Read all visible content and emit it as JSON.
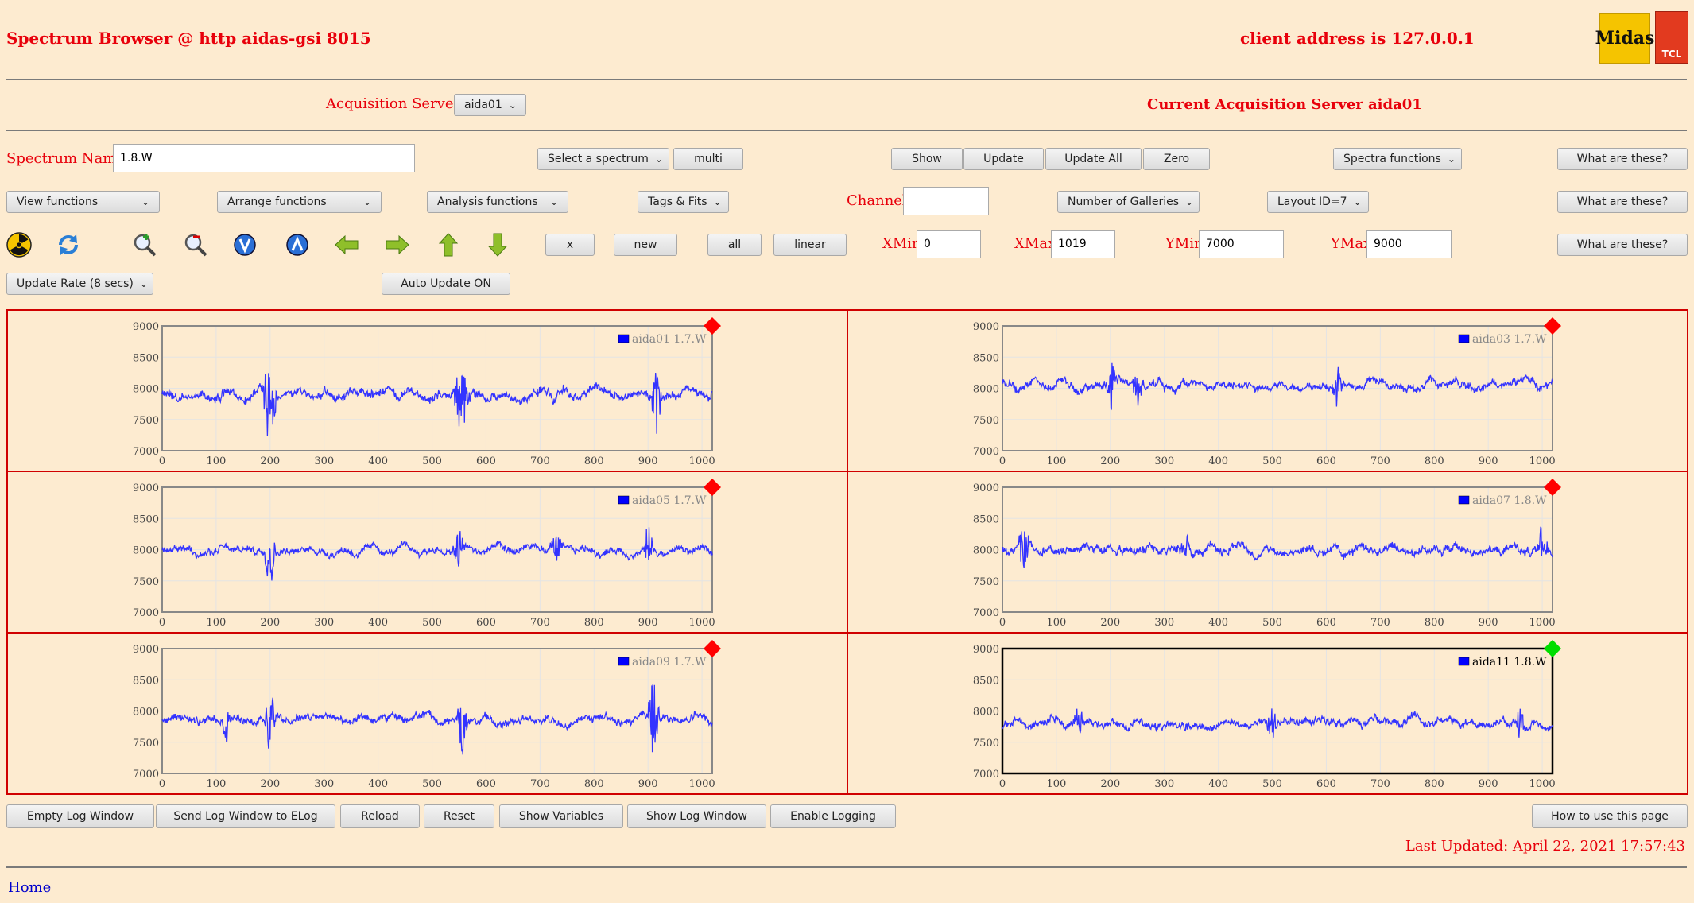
{
  "header": {
    "title": "Spectrum Browser @ http aidas-gsi 8015",
    "client": "client address is 127.0.0.1",
    "logo_midas": "Midas",
    "logo_tcl": "TCL"
  },
  "acquisition": {
    "label": "Acquisition Servers",
    "server_select": "aida01",
    "current": "Current Acquisition Server aida01"
  },
  "row1": {
    "spectrum_name_label": "Spectrum Name:",
    "spectrum_name_value": "1.8.W",
    "select_spectrum": "Select a spectrum",
    "multi": "multi",
    "show": "Show",
    "update": "Update",
    "update_all": "Update All",
    "zero": "Zero",
    "spectra_functions": "Spectra functions",
    "help": "What are these?"
  },
  "row2": {
    "view_functions": "View functions",
    "arrange_functions": "Arrange functions",
    "analysis_functions": "Analysis functions",
    "tags_fits": "Tags & Fits",
    "channel_label": "Channel:",
    "channel_value": "",
    "number_of_galleries": "Number of Galleries",
    "layout_id": "Layout ID=7",
    "help": "What are these?"
  },
  "row3": {
    "icons": [
      "radiation-icon",
      "refresh-icon",
      "zoom-in-icon",
      "zoom-out-icon",
      "scale-down-icon",
      "scale-up-icon",
      "arrow-left-icon",
      "arrow-right-icon",
      "arrow-up-icon",
      "arrow-down-icon"
    ],
    "x": "x",
    "new": "new",
    "all": "all",
    "linear": "linear",
    "xmin_label": "XMin",
    "xmin_value": "0",
    "xmax_label": "XMax",
    "xmax_value": "1019",
    "ymin_label": "YMin",
    "ymin_value": "7000",
    "ymax_label": "YMax",
    "ymax_value": "9000",
    "help": "What are these?"
  },
  "row4": {
    "update_rate": "Update Rate (8 secs)",
    "auto_update": "Auto Update ON"
  },
  "chart_data": [
    {
      "type": "line",
      "series": [
        {
          "name": "aida01 1.7.W"
        }
      ],
      "xlim": [
        0,
        1019
      ],
      "ylim": [
        7000,
        9000
      ],
      "x_ticks": [
        "0",
        "100",
        "200",
        "300",
        "400",
        "500",
        "600",
        "700",
        "800",
        "900",
        "1000"
      ],
      "y_ticks": [
        "7000",
        "7500",
        "8000",
        "8500",
        "9000"
      ],
      "status": "red",
      "baseline": 7900,
      "noise": 120,
      "spikes": [
        [
          195,
          650
        ],
        [
          550,
          600
        ],
        [
          915,
          700
        ],
        [
          560,
          450
        ],
        [
          205,
          420
        ]
      ],
      "selected": false,
      "grid": true
    },
    {
      "type": "line",
      "series": [
        {
          "name": "aida03 1.7.W"
        }
      ],
      "xlim": [
        0,
        1019
      ],
      "ylim": [
        7000,
        9000
      ],
      "x_ticks": [
        "0",
        "100",
        "200",
        "300",
        "400",
        "500",
        "600",
        "700",
        "800",
        "900",
        "1000"
      ],
      "y_ticks": [
        "7000",
        "7500",
        "8000",
        "8500",
        "9000"
      ],
      "status": "red",
      "baseline": 8050,
      "noise": 100,
      "spikes": [
        [
          200,
          600
        ],
        [
          250,
          350
        ],
        [
          620,
          300
        ]
      ],
      "selected": false,
      "grid": true
    },
    {
      "type": "line",
      "series": [
        {
          "name": "aida05 1.7.W"
        }
      ],
      "xlim": [
        0,
        1019
      ],
      "ylim": [
        7000,
        9000
      ],
      "x_ticks": [
        "0",
        "100",
        "200",
        "300",
        "400",
        "500",
        "600",
        "700",
        "800",
        "900",
        "1000"
      ],
      "y_ticks": [
        "7000",
        "7500",
        "8000",
        "8500",
        "9000"
      ],
      "status": "red",
      "baseline": 7980,
      "noise": 90,
      "spikes": [
        [
          200,
          550
        ],
        [
          550,
          480
        ],
        [
          900,
          420
        ],
        [
          730,
          300
        ]
      ],
      "selected": false,
      "grid": true
    },
    {
      "type": "line",
      "series": [
        {
          "name": "aida07 1.8.W"
        }
      ],
      "xlim": [
        0,
        1019
      ],
      "ylim": [
        7000,
        9000
      ],
      "x_ticks": [
        "0",
        "100",
        "200",
        "300",
        "400",
        "500",
        "600",
        "700",
        "800",
        "900",
        "1000"
      ],
      "y_ticks": [
        "7000",
        "7500",
        "8000",
        "8500",
        "9000"
      ],
      "status": "red",
      "baseline": 8000,
      "noise": 110,
      "spikes": [
        [
          40,
          450
        ],
        [
          1000,
          380
        ],
        [
          340,
          250
        ]
      ],
      "selected": false,
      "grid": true
    },
    {
      "type": "line",
      "series": [
        {
          "name": "aida09 1.7.W"
        }
      ],
      "xlim": [
        0,
        1019
      ],
      "ylim": [
        7000,
        9000
      ],
      "x_ticks": [
        "0",
        "100",
        "200",
        "300",
        "400",
        "500",
        "600",
        "700",
        "800",
        "900",
        "1000"
      ],
      "y_ticks": [
        "7000",
        "7500",
        "8000",
        "8500",
        "9000"
      ],
      "status": "red",
      "baseline": 7870,
      "noise": 100,
      "spikes": [
        [
          200,
          600
        ],
        [
          555,
          700
        ],
        [
          910,
          800
        ],
        [
          120,
          300
        ]
      ],
      "selected": false,
      "grid": true
    },
    {
      "type": "line",
      "series": [
        {
          "name": "aida11 1.8.W"
        }
      ],
      "xlim": [
        0,
        1019
      ],
      "ylim": [
        7000,
        9000
      ],
      "x_ticks": [
        "0",
        "100",
        "200",
        "300",
        "400",
        "500",
        "600",
        "700",
        "800",
        "900",
        "1000"
      ],
      "y_ticks": [
        "7000",
        "7500",
        "8000",
        "8500",
        "9000"
      ],
      "status": "green",
      "baseline": 7800,
      "noise": 100,
      "spikes": [
        [
          500,
          300
        ],
        [
          960,
          280
        ],
        [
          140,
          250
        ]
      ],
      "selected": true,
      "grid": true
    }
  ],
  "colors": {
    "line": "#3333ff",
    "status_red": "#ff0000",
    "status_green": "#00dd00",
    "frame": "#d00000"
  },
  "footer": {
    "buttons": [
      "Empty Log Window",
      "Send Log Window to ELog",
      "Reload",
      "Reset",
      "Show Variables",
      "Show Log Window",
      "Enable Logging"
    ],
    "how_to": "How to use this page",
    "last_updated": "Last Updated: April 22, 2021 17:57:43",
    "home": "Home"
  }
}
